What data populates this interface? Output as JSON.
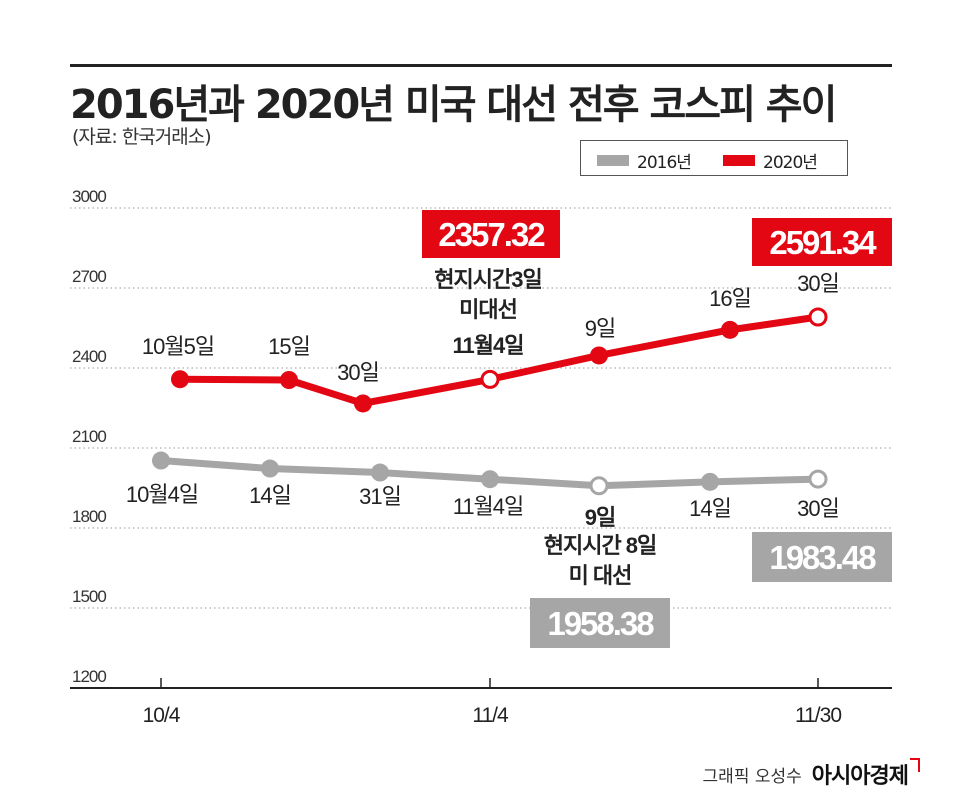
{
  "title": "2016년과 2020년 미국 대선 전후 코스피 추이",
  "source": "(자료: 한국거래소)",
  "legend": [
    {
      "label": "2016년",
      "color": "#a6a6a6"
    },
    {
      "label": "2020년",
      "color": "#e30613"
    }
  ],
  "credit": "그래픽 오성수",
  "brand": "아시아경제",
  "chart_data": {
    "type": "line",
    "title": "2016년과 2020년 미국 대선 전후 코스피 추이",
    "ylim": [
      1200,
      3000
    ],
    "y_ticks": [
      "3000",
      "2700",
      "2400",
      "2100",
      "1800",
      "1500",
      "1200"
    ],
    "x_ticks": [
      "10/4",
      "11/4",
      "11/30"
    ],
    "grid": true,
    "legend_position": "top-right",
    "series": [
      {
        "name": "2016년",
        "color": "#a6a6a6",
        "points": [
          {
            "x": "10/4",
            "y": 2053,
            "label": "10월4일",
            "marker": "filled"
          },
          {
            "x": "10/14",
            "y": 2023,
            "label": "14일",
            "marker": "filled"
          },
          {
            "x": "10/31",
            "y": 2008,
            "label": "31일",
            "marker": "filled"
          },
          {
            "x": "11/4",
            "y": 1983,
            "label": "11월4일",
            "marker": "filled"
          },
          {
            "x": "11/9",
            "y": 1958.38,
            "label": "9일",
            "marker": "open"
          },
          {
            "x": "11/14",
            "y": 1973,
            "label": "14일",
            "marker": "filled"
          },
          {
            "x": "11/30",
            "y": 1983.48,
            "label": "30일",
            "marker": "open"
          }
        ]
      },
      {
        "name": "2020년",
        "color": "#e30613",
        "points": [
          {
            "x": "10/5",
            "y": 2358,
            "label": "10월5일",
            "marker": "filled"
          },
          {
            "x": "10/15",
            "y": 2355,
            "label": "15일",
            "marker": "filled"
          },
          {
            "x": "10/30",
            "y": 2267,
            "label": "30일",
            "marker": "filled"
          },
          {
            "x": "11/4",
            "y": 2357.32,
            "label": "11월4일",
            "marker": "open"
          },
          {
            "x": "11/9",
            "y": 2447,
            "label": "9일",
            "marker": "filled"
          },
          {
            "x": "11/16",
            "y": 2543,
            "label": "16일",
            "marker": "filled"
          },
          {
            "x": "11/30",
            "y": 2591.34,
            "label": "30일",
            "marker": "open"
          }
        ]
      }
    ],
    "annotations": [
      {
        "series": "2020년",
        "x": "11/4",
        "text": [
          "현지시간3일",
          "미대선"
        ]
      },
      {
        "series": "2016년",
        "x": "11/9",
        "text": [
          "현지시간 8일",
          "미 대선"
        ]
      }
    ],
    "value_boxes": [
      {
        "series": "2020년",
        "x": "11/4",
        "text": "2357.32",
        "color": "#e30613"
      },
      {
        "series": "2020년",
        "x": "11/30",
        "text": "2591.34",
        "color": "#e30613"
      },
      {
        "series": "2016년",
        "x": "11/9",
        "text": "1958.38",
        "color": "#a6a6a6"
      },
      {
        "series": "2016년",
        "x": "11/30",
        "text": "1983.48",
        "color": "#a6a6a6"
      }
    ]
  }
}
